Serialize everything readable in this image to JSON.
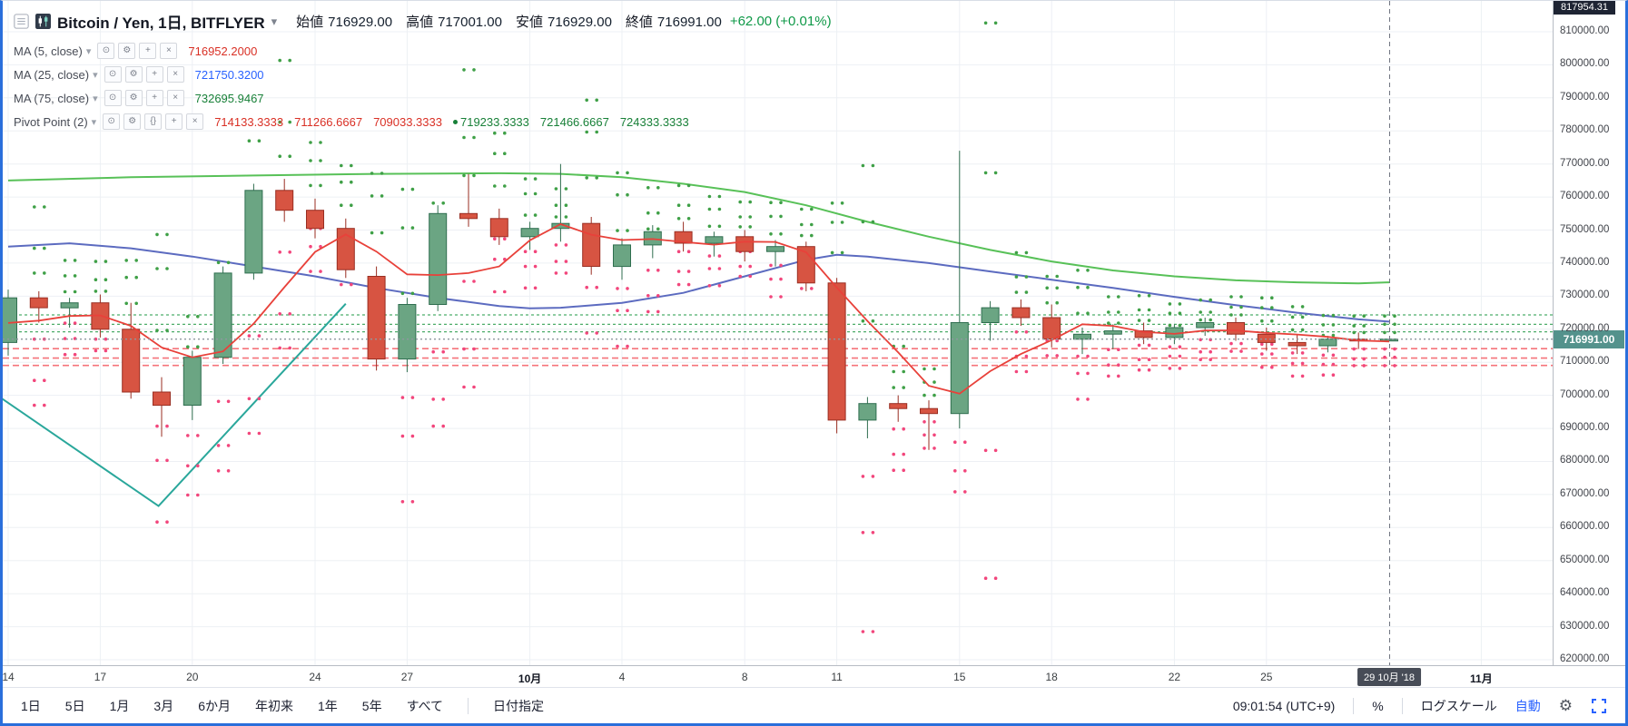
{
  "window": {
    "accent_border": "#2a6fdb"
  },
  "header": {
    "title": "Bitcoin / Yen, 1日, BITFLYER",
    "ohlc": [
      {
        "label": "始値",
        "value": "716929.00"
      },
      {
        "label": "高値",
        "value": "717001.00"
      },
      {
        "label": "安値",
        "value": "716929.00"
      },
      {
        "label": "終値",
        "value": "716991.00"
      }
    ],
    "change": "+62.00 (+0.01%)",
    "change_color": "#0f9948"
  },
  "legend": [
    {
      "name": "MA (5, close)",
      "icons": [
        "visibility",
        "settings",
        "plus",
        "close"
      ],
      "values": [
        {
          "text": "716952.2000",
          "color": "#d93025"
        }
      ]
    },
    {
      "name": "MA (25, close)",
      "icons": [
        "visibility",
        "settings",
        "plus",
        "close"
      ],
      "values": [
        {
          "text": "721750.3200",
          "color": "#2962ff"
        }
      ]
    },
    {
      "name": "MA (75, close)",
      "icons": [
        "visibility",
        "settings",
        "plus",
        "close"
      ],
      "values": [
        {
          "text": "732695.9467",
          "color": "#188038"
        }
      ]
    },
    {
      "name": "Pivot Point (2)",
      "icons": [
        "visibility",
        "settings",
        "source",
        "plus",
        "close"
      ],
      "values": [
        {
          "text": "714133.3333",
          "color": "#d93025"
        },
        {
          "text": "711266.6667",
          "color": "#d93025"
        },
        {
          "text": "709033.3333",
          "color": "#d93025"
        },
        {
          "text": "719233.3333",
          "color": "#188038",
          "bullet": true
        },
        {
          "text": "721466.6667",
          "color": "#188038"
        },
        {
          "text": "724333.3333",
          "color": "#188038"
        }
      ]
    }
  ],
  "icon_glyphs": {
    "visibility": "⊙",
    "settings": "⚙",
    "source": "{}",
    "plus": "+",
    "close": "×",
    "caret": "▾"
  },
  "price_axis": {
    "min": 620000,
    "max": 810000,
    "step": 10000,
    "last_price_label": "716991.00",
    "last_price_badge_color": "#54928c",
    "top_badge": "817954.31"
  },
  "time_axis": {
    "labels": [
      {
        "idx": 0,
        "text": "14"
      },
      {
        "idx": 3,
        "text": "17"
      },
      {
        "idx": 6,
        "text": "20"
      },
      {
        "idx": 10,
        "text": "24"
      },
      {
        "idx": 13,
        "text": "27"
      },
      {
        "idx": 17,
        "text": "10月",
        "bold": true
      },
      {
        "idx": 20,
        "text": "4"
      },
      {
        "idx": 24,
        "text": "8"
      },
      {
        "idx": 27,
        "text": "11"
      },
      {
        "idx": 31,
        "text": "15"
      },
      {
        "idx": 34,
        "text": "18"
      },
      {
        "idx": 38,
        "text": "22"
      },
      {
        "idx": 41,
        "text": "25"
      },
      {
        "idx": 48,
        "text": "11月",
        "bold": true
      }
    ],
    "current": {
      "idx": 45,
      "label": "29 10月 '18"
    }
  },
  "toolbar": {
    "ranges": [
      "1日",
      "5日",
      "1月",
      "3月",
      "6か月",
      "年初来",
      "1年",
      "5年",
      "すべて"
    ],
    "goto_date": "日付指定",
    "clock": "09:01:54 (UTC+9)",
    "percent": "%",
    "log_scale": "ログスケール",
    "auto": "自動",
    "auto_color": "#2962ff"
  },
  "chart_data": {
    "type": "candlestick",
    "title": "Bitcoin / Yen, 1日, BITFLYER",
    "ylim": [
      620000,
      810000
    ],
    "y_tick": 10000,
    "bar_interval": "1日",
    "candles": [
      [
        716000,
        732000,
        712000,
        729500
      ],
      [
        729500,
        731500,
        722000,
        726500
      ],
      [
        726500,
        729500,
        720500,
        728000
      ],
      [
        728000,
        730500,
        717500,
        720000
      ],
      [
        720000,
        728000,
        699000,
        701000
      ],
      [
        701000,
        705500,
        687500,
        697000
      ],
      [
        697000,
        713500,
        692500,
        711500
      ],
      [
        711500,
        739000,
        709500,
        737000
      ],
      [
        737000,
        764000,
        735000,
        762000
      ],
      [
        762000,
        765500,
        752500,
        756000
      ],
      [
        756000,
        759500,
        747500,
        750500
      ],
      [
        750500,
        753500,
        735500,
        738000
      ],
      [
        736000,
        739000,
        707500,
        711000
      ],
      [
        711000,
        729500,
        707000,
        727500
      ],
      [
        727500,
        757500,
        725500,
        755000
      ],
      [
        755000,
        767000,
        751000,
        753500
      ],
      [
        753500,
        756500,
        745500,
        748000
      ],
      [
        748000,
        752500,
        744000,
        750500
      ],
      [
        750500,
        770000,
        746500,
        752000
      ],
      [
        752000,
        754000,
        736500,
        739000
      ],
      [
        739000,
        747500,
        735000,
        745500
      ],
      [
        745500,
        751500,
        741500,
        749500
      ],
      [
        749500,
        752500,
        743500,
        746000
      ],
      [
        746000,
        749500,
        742000,
        748000
      ],
      [
        748000,
        750000,
        740500,
        743500
      ],
      [
        743500,
        747000,
        739000,
        745000
      ],
      [
        745000,
        746500,
        731500,
        734000
      ],
      [
        734000,
        735500,
        688500,
        692500
      ],
      [
        692500,
        699500,
        687000,
        697500
      ],
      [
        697500,
        700000,
        692000,
        696000
      ],
      [
        696000,
        698500,
        683500,
        694500
      ],
      [
        694500,
        774000,
        690000,
        722000
      ],
      [
        722000,
        728500,
        716500,
        726500
      ],
      [
        726500,
        729000,
        721000,
        723500
      ],
      [
        723500,
        727500,
        714500,
        717000
      ],
      [
        717000,
        720500,
        712500,
        718500
      ],
      [
        718500,
        721500,
        714000,
        719500
      ],
      [
        719500,
        722000,
        715500,
        717500
      ],
      [
        717500,
        721500,
        715500,
        720500
      ],
      [
        720500,
        723500,
        718000,
        722000
      ],
      [
        722000,
        723500,
        716500,
        718500
      ],
      [
        718500,
        720500,
        713500,
        716000
      ],
      [
        716000,
        718500,
        712500,
        715000
      ],
      [
        715000,
        718000,
        713000,
        717000
      ],
      [
        717000,
        719000,
        714000,
        716500
      ],
      [
        716929,
        717001,
        716929,
        716991
      ]
    ],
    "last_price": 716991,
    "ma5": {
      "color": "#e8413a",
      "seed_closes": [
        723000,
        721000,
        719000,
        717000
      ]
    },
    "ma25": {
      "color": "#5c6bc0",
      "points": [
        [
          0,
          745000
        ],
        [
          2,
          746000
        ],
        [
          4,
          744500
        ],
        [
          6,
          742000
        ],
        [
          8,
          739000
        ],
        [
          10,
          736000
        ],
        [
          12,
          732500
        ],
        [
          14,
          729500
        ],
        [
          16,
          727000
        ],
        [
          17,
          726300
        ],
        [
          18,
          726500
        ],
        [
          20,
          728000
        ],
        [
          22,
          731000
        ],
        [
          24,
          736000
        ],
        [
          26,
          741000
        ],
        [
          27,
          742500
        ],
        [
          28,
          742000
        ],
        [
          30,
          740000
        ],
        [
          32,
          737500
        ],
        [
          34,
          735000
        ],
        [
          36,
          732500
        ],
        [
          38,
          729800
        ],
        [
          40,
          727300
        ],
        [
          42,
          725000
        ],
        [
          44,
          723000
        ],
        [
          45,
          722300
        ]
      ]
    },
    "ma75": {
      "color": "#58c158",
      "points": [
        [
          0,
          765000
        ],
        [
          4,
          766000
        ],
        [
          8,
          766500
        ],
        [
          12,
          767000
        ],
        [
          16,
          767200
        ],
        [
          18,
          767000
        ],
        [
          20,
          766000
        ],
        [
          22,
          764000
        ],
        [
          24,
          761500
        ],
        [
          26,
          757500
        ],
        [
          28,
          752500
        ],
        [
          30,
          748000
        ],
        [
          32,
          744000
        ],
        [
          34,
          740500
        ],
        [
          36,
          737800
        ],
        [
          38,
          736000
        ],
        [
          40,
          734800
        ],
        [
          42,
          734200
        ],
        [
          44,
          733900
        ],
        [
          45,
          734200
        ]
      ]
    },
    "trend_line": {
      "color": "#2aa79b",
      "points": [
        [
          -0.2,
          699000
        ],
        [
          4.9,
          666500
        ],
        [
          11.0,
          727700
        ]
      ]
    },
    "pivot": {
      "resistance_levels": [
        719233.3333,
        721466.6667,
        724333.3333
      ],
      "support_levels": [
        714133.3333,
        711266.6667,
        709033.3333
      ],
      "resistance_color": "#2e9e4f",
      "support_color": "#f4646c",
      "dot_up_color": "#3fa047",
      "dot_down_color": "#f2467c"
    },
    "candle_colors": {
      "up_fill": "#6ba583",
      "up_border": "#2f6e4f",
      "down_fill": "#d75442",
      "down_border": "#992e22"
    }
  }
}
